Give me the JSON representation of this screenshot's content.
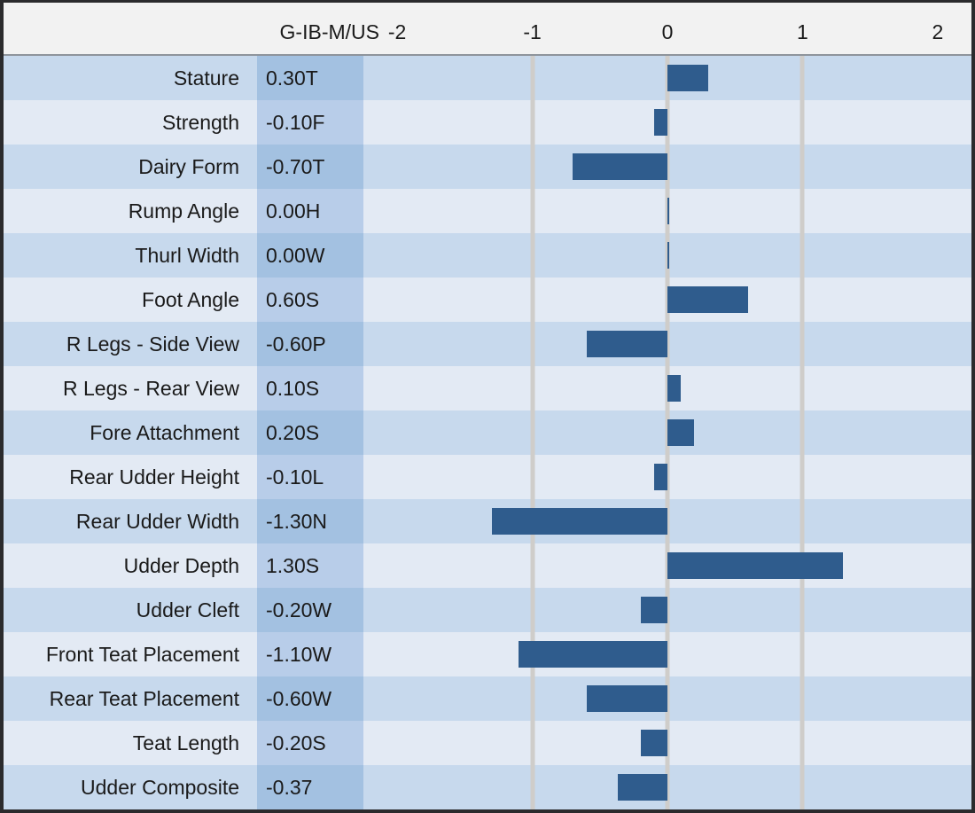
{
  "chart_data": {
    "type": "bar",
    "orientation": "horizontal",
    "title": "G-IB-M/US",
    "axis": {
      "min": -2.25,
      "max": 2.25,
      "ticks": [
        "-2",
        "-1",
        "0",
        "1",
        "2"
      ],
      "tick_values": [
        -2,
        -1,
        0,
        1,
        2
      ],
      "gridline_values": [
        -1,
        0,
        1
      ]
    },
    "traits": [
      {
        "label": "Stature",
        "display": "0.30T",
        "value": 0.3
      },
      {
        "label": "Strength",
        "display": "-0.10F",
        "value": -0.1
      },
      {
        "label": "Dairy Form",
        "display": "-0.70T",
        "value": -0.7
      },
      {
        "label": "Rump Angle",
        "display": "0.00H",
        "value": 0.0
      },
      {
        "label": "Thurl Width",
        "display": "0.00W",
        "value": 0.0
      },
      {
        "label": "Foot Angle",
        "display": "0.60S",
        "value": 0.6
      },
      {
        "label": "R Legs - Side View",
        "display": "-0.60P",
        "value": -0.6
      },
      {
        "label": "R Legs - Rear View",
        "display": "0.10S",
        "value": 0.1
      },
      {
        "label": "Fore Attachment",
        "display": "0.20S",
        "value": 0.2
      },
      {
        "label": "Rear Udder Height",
        "display": "-0.10L",
        "value": -0.1
      },
      {
        "label": "Rear Udder Width",
        "display": "-1.30N",
        "value": -1.3
      },
      {
        "label": "Udder Depth",
        "display": "1.30S",
        "value": 1.3
      },
      {
        "label": "Udder Cleft",
        "display": "-0.20W",
        "value": -0.2
      },
      {
        "label": "Front Teat Placement",
        "display": "-1.10W",
        "value": -1.1
      },
      {
        "label": "Rear Teat Placement",
        "display": "-0.60W",
        "value": -0.6
      },
      {
        "label": "Teat Length",
        "display": "-0.20S",
        "value": -0.2
      },
      {
        "label": "Udder Composite",
        "display": "-0.37",
        "value": -0.37
      }
    ]
  },
  "colors": {
    "bar": "#2F5C8D",
    "row_dark": "#C7D9ED",
    "row_light": "#E3EAF4",
    "value_cell_dark": "#A3C1E1",
    "value_cell_light": "#B8CDE9",
    "gridline": "#CFCDCA",
    "header_bg": "#F2F2F2",
    "frame_border": "#2B2B2D"
  }
}
